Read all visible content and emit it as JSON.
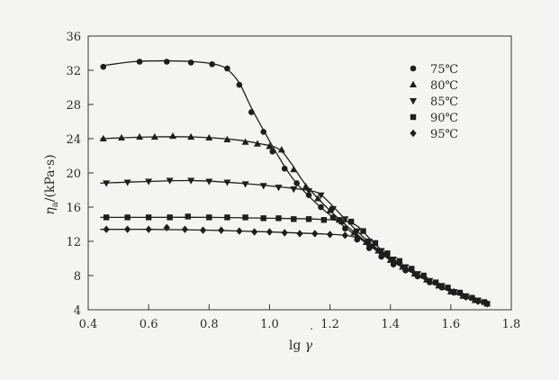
{
  "chart_data": {
    "type": "line",
    "title": "",
    "xlabel": "lg γ̇",
    "ylabel": "η_a/(kPa·s)",
    "ylabel_main": "η",
    "ylabel_sub": "a",
    "ylabel_rest": "/(kPa·s)",
    "xlabel_main": "lg ",
    "xlabel_symbol": "γ",
    "xlim": [
      0.4,
      1.8
    ],
    "ylim": [
      4,
      36
    ],
    "xticks": [
      0.4,
      0.6,
      0.8,
      1.0,
      1.2,
      1.4,
      1.6,
      1.8
    ],
    "yticks": [
      4,
      8,
      12,
      16,
      20,
      24,
      28,
      32,
      36
    ],
    "xtick_labels": [
      "0.4",
      "0.6",
      "0.8",
      "1.0",
      "1.2",
      "1.4",
      "1.6",
      "1.8"
    ],
    "ytick_labels": [
      "4",
      "8",
      "12",
      "16",
      "20",
      "24",
      "28",
      "32",
      "36"
    ],
    "grid": false,
    "legend_position": "top-right",
    "series": [
      {
        "name": "75℃",
        "marker": "circle",
        "x": [
          0.45,
          0.57,
          0.66,
          0.74,
          0.81,
          0.86,
          0.9,
          0.94,
          0.98,
          1.01,
          1.05,
          1.09,
          1.13,
          1.17,
          1.21,
          1.25,
          1.29,
          1.33,
          1.37,
          1.41,
          1.45,
          1.49,
          1.53,
          1.57,
          1.61,
          1.65,
          1.69,
          1.72
        ],
        "y": [
          32.4,
          33.0,
          33.0,
          32.9,
          32.7,
          32.2,
          30.3,
          27.1,
          24.8,
          22.5,
          20.5,
          18.8,
          17.4,
          16.0,
          14.8,
          13.5,
          12.2,
          11.2,
          10.2,
          9.3,
          8.6,
          7.9,
          7.2,
          6.6,
          6.0,
          5.5,
          5.0,
          4.7
        ],
        "curve_x": [
          0.44,
          0.55,
          0.65,
          0.75,
          0.82,
          0.86,
          0.9,
          0.94,
          0.98,
          1.03,
          1.08,
          1.15,
          1.22,
          1.3,
          1.4,
          1.5,
          1.6,
          1.72
        ],
        "curve_y": [
          32.5,
          33.0,
          33.1,
          33.0,
          32.7,
          32.1,
          30.5,
          27.6,
          25.0,
          21.9,
          19.2,
          16.6,
          14.5,
          12.3,
          9.8,
          7.8,
          6.1,
          4.6
        ]
      },
      {
        "name": "80℃",
        "marker": "triangle-up",
        "x": [
          0.45,
          0.51,
          0.57,
          0.62,
          0.68,
          0.74,
          0.8,
          0.86,
          0.92,
          0.96,
          1.0,
          1.04,
          1.08,
          1.12,
          1.16,
          1.2,
          1.24,
          1.28,
          1.32,
          1.36,
          1.4,
          1.44,
          1.48,
          1.52,
          1.56,
          1.6,
          1.64,
          1.68,
          1.72
        ],
        "y": [
          24.0,
          24.1,
          24.2,
          24.2,
          24.3,
          24.2,
          24.1,
          23.9,
          23.6,
          23.4,
          23.1,
          22.7,
          20.4,
          18.4,
          17.0,
          15.6,
          14.3,
          13.0,
          11.9,
          10.9,
          9.8,
          9.0,
          8.2,
          7.5,
          6.8,
          6.1,
          5.6,
          5.1,
          4.7
        ],
        "curve_x": [
          0.44,
          0.6,
          0.75,
          0.88,
          0.97,
          1.03,
          1.07,
          1.12,
          1.2,
          1.3,
          1.4,
          1.5,
          1.6,
          1.72
        ],
        "curve_y": [
          24.0,
          24.2,
          24.2,
          23.9,
          23.4,
          22.8,
          21.2,
          18.6,
          15.6,
          12.5,
          9.9,
          7.8,
          6.1,
          4.6
        ]
      },
      {
        "name": "85℃",
        "marker": "triangle-down",
        "x": [
          0.46,
          0.53,
          0.6,
          0.67,
          0.74,
          0.8,
          0.86,
          0.92,
          0.98,
          1.03,
          1.08,
          1.13,
          1.17,
          1.21,
          1.25,
          1.29,
          1.33,
          1.37,
          1.41,
          1.45,
          1.49,
          1.53,
          1.57,
          1.61,
          1.65,
          1.69,
          1.72
        ],
        "y": [
          18.8,
          18.9,
          19.0,
          19.1,
          19.1,
          19.0,
          18.9,
          18.7,
          18.5,
          18.3,
          18.1,
          17.9,
          17.4,
          15.8,
          14.6,
          13.2,
          12.0,
          10.9,
          9.9,
          9.0,
          8.2,
          7.4,
          6.8,
          6.1,
          5.6,
          5.1,
          4.7
        ],
        "curve_x": [
          0.44,
          0.6,
          0.75,
          0.9,
          1.05,
          1.15,
          1.19,
          1.25,
          1.32,
          1.4,
          1.5,
          1.6,
          1.72
        ],
        "curve_y": [
          18.8,
          19.0,
          19.1,
          18.8,
          18.3,
          17.8,
          16.8,
          14.6,
          12.2,
          10.0,
          7.9,
          6.1,
          4.6
        ]
      },
      {
        "name": "90℃",
        "marker": "square",
        "x": [
          0.46,
          0.53,
          0.6,
          0.67,
          0.73,
          0.8,
          0.86,
          0.92,
          0.98,
          1.03,
          1.08,
          1.13,
          1.18,
          1.23,
          1.27,
          1.31,
          1.35,
          1.39,
          1.43,
          1.47,
          1.51,
          1.55,
          1.59,
          1.63,
          1.67,
          1.71
        ],
        "y": [
          14.8,
          14.8,
          14.8,
          14.8,
          14.9,
          14.8,
          14.8,
          14.8,
          14.7,
          14.7,
          14.6,
          14.6,
          14.5,
          14.5,
          14.3,
          13.2,
          11.8,
          10.6,
          9.7,
          8.8,
          8.0,
          7.2,
          6.6,
          6.0,
          5.4,
          4.9
        ],
        "curve_x": [
          0.44,
          0.6,
          0.8,
          1.0,
          1.15,
          1.24,
          1.29,
          1.34,
          1.4,
          1.5,
          1.6,
          1.72
        ],
        "curve_y": [
          14.8,
          14.8,
          14.8,
          14.7,
          14.6,
          14.4,
          13.8,
          12.0,
          10.1,
          7.9,
          6.1,
          4.6
        ]
      },
      {
        "name": "95℃",
        "marker": "diamond",
        "x": [
          0.46,
          0.53,
          0.6,
          0.66,
          0.72,
          0.78,
          0.84,
          0.9,
          0.95,
          1.0,
          1.05,
          1.1,
          1.15,
          1.2,
          1.25,
          1.29,
          1.33,
          1.37,
          1.41,
          1.45,
          1.49,
          1.53,
          1.57,
          1.61,
          1.65,
          1.69,
          1.72
        ],
        "y": [
          13.4,
          13.4,
          13.4,
          13.6,
          13.4,
          13.3,
          13.3,
          13.2,
          13.1,
          13.1,
          13.0,
          12.9,
          12.9,
          12.8,
          12.7,
          12.5,
          11.5,
          10.6,
          9.7,
          8.8,
          8.0,
          7.3,
          6.7,
          6.1,
          5.5,
          5.0,
          4.7
        ],
        "curve_x": [
          0.44,
          0.6,
          0.8,
          1.0,
          1.15,
          1.25,
          1.31,
          1.36,
          1.42,
          1.5,
          1.6,
          1.72
        ],
        "curve_y": [
          13.4,
          13.4,
          13.3,
          13.1,
          12.9,
          12.7,
          12.2,
          11.0,
          9.6,
          7.9,
          6.1,
          4.6
        ]
      }
    ]
  }
}
